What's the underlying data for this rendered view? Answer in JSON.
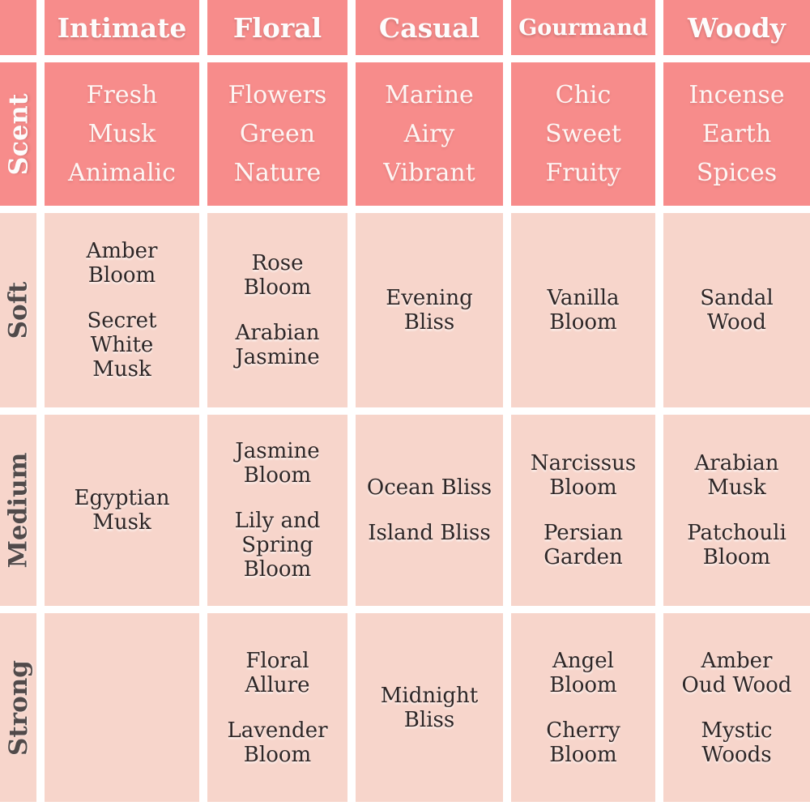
{
  "colors": {
    "header_bg": "#f78c8b",
    "cell_bg": "#f7d5cb",
    "gutter": "#ffffff",
    "header_text": "#fdfcfc",
    "cell_text": "#2e2626",
    "row_label_text": "#514a4a"
  },
  "chart_data": {
    "type": "table",
    "title": "",
    "corner_label": "",
    "columns": [
      "Intimate",
      "Floral",
      "Casual",
      "Gourmand",
      "Woody"
    ],
    "scent_row": {
      "label": "Scent",
      "descriptors": [
        "Fresh\nMusk\nAnimalic",
        "Flowers\nGreen\nNature",
        "Marine\nAiry\nVibrant",
        "Chic\nSweet\nFruity",
        "Incense\nEarth\nSpices"
      ]
    },
    "rows": [
      {
        "label": "Soft",
        "cells": [
          [
            "Amber\nBloom",
            "Secret\nWhite\nMusk"
          ],
          [
            "Rose\nBloom",
            "Arabian\nJasmine"
          ],
          [
            "Evening\nBliss"
          ],
          [
            "Vanilla\nBloom"
          ],
          [
            "Sandal\nWood"
          ]
        ]
      },
      {
        "label": "Medium",
        "cells": [
          [
            "Egyptian\nMusk"
          ],
          [
            "Jasmine\nBloom",
            "Lily and\nSpring\nBloom"
          ],
          [
            "Ocean Bliss",
            "Island Bliss"
          ],
          [
            "Narcissus\nBloom",
            "Persian\nGarden"
          ],
          [
            "Arabian\nMusk",
            "Patchouli\nBloom"
          ]
        ]
      },
      {
        "label": "Strong",
        "cells": [
          [],
          [
            "Floral\nAllure",
            "Lavender\nBloom"
          ],
          [
            "Midnight\nBliss"
          ],
          [
            "Angel\nBloom",
            "Cherry\nBloom"
          ],
          [
            "Amber\nOud Wood",
            "Mystic\nWoods"
          ]
        ]
      }
    ]
  }
}
